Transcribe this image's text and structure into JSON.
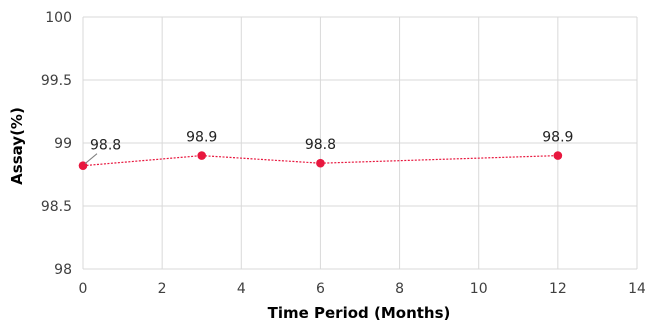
{
  "chart_data": {
    "type": "scatter",
    "xlabel": "Time Period (Months)",
    "ylabel": "Assay(%)",
    "xlim": [
      0,
      14
    ],
    "ylim": [
      98,
      100
    ],
    "x_ticks": [
      0,
      2,
      4,
      6,
      8,
      10,
      12,
      14
    ],
    "y_ticks": [
      98,
      98.5,
      99,
      99.5,
      100
    ],
    "y_tick_labels": [
      "98",
      "98.5",
      "99",
      "99.5",
      "100"
    ],
    "grid": true,
    "series": [
      {
        "color": "#e8173e",
        "points": [
          {
            "x": 0,
            "y": 98.82,
            "label": "98.8"
          },
          {
            "x": 3,
            "y": 98.9,
            "label": "98.9"
          },
          {
            "x": 6,
            "y": 98.84,
            "label": "98.8"
          },
          {
            "x": 12,
            "y": 98.9,
            "label": "98.9"
          }
        ]
      }
    ]
  }
}
